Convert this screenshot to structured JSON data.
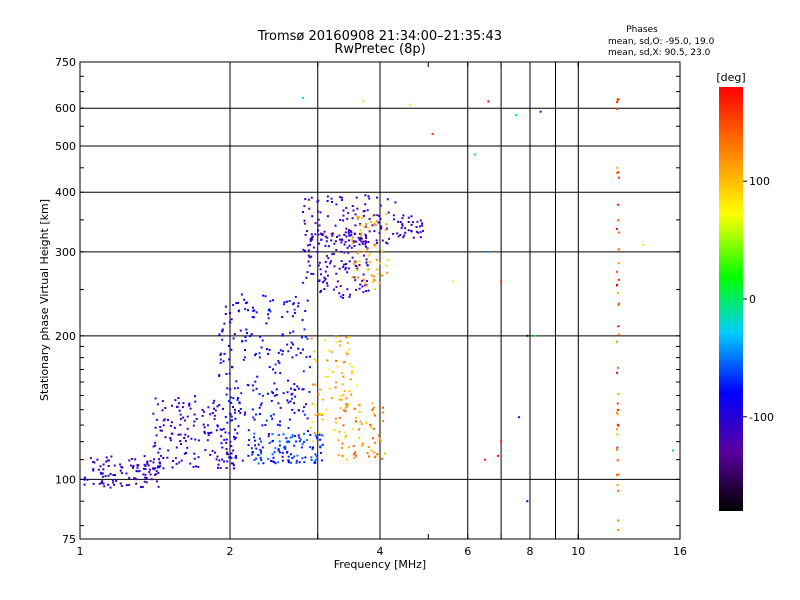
{
  "chart_data": {
    "type": "scatter",
    "title": "Tromsø 20160908 21:34:00–21:35:43",
    "subtitle": "RwPretec (8p)",
    "xlabel": "Frequency [MHz]",
    "ylabel": "Stationary phase Virtual Height [km]",
    "x_scale": "log",
    "y_scale": "log",
    "xlim": [
      1,
      16
    ],
    "ylim": [
      75,
      750
    ],
    "x_ticks": [
      1,
      2,
      4,
      6,
      8,
      10,
      16
    ],
    "x_tick_labels": [
      "1",
      "2",
      "4",
      "6",
      "8",
      "10",
      "16"
    ],
    "y_ticks": [
      75,
      100,
      200,
      300,
      400,
      500,
      600,
      750
    ],
    "y_tick_labels": [
      "75",
      "100",
      "200",
      "300",
      "400",
      "500",
      "600",
      "750"
    ],
    "extra_grid_x": [
      3,
      7,
      9
    ],
    "colorbar": {
      "label": "[deg]",
      "range": [
        -180,
        180
      ],
      "ticks": [
        100,
        0,
        -100
      ],
      "tick_labels": [
        "100",
        "0",
        "-100"
      ]
    },
    "legend": {
      "header": "Phases",
      "lines": [
        "mean, sd,O: -95.0, 19.0",
        "mean, sd,X:  90.5, 23.0"
      ]
    },
    "colors": {
      "low": "#000000",
      "mid": "#00ff00",
      "high": "#ff0000"
    },
    "point_clusters": [
      {
        "freq": [
          1.02,
          1.45
        ],
        "height": [
          96,
          112
        ],
        "phase": [
          -125,
          -90
        ],
        "count": 110
      },
      {
        "freq": [
          1.4,
          2.1
        ],
        "height": [
          105,
          150
        ],
        "phase": [
          -125,
          -85
        ],
        "count": 170
      },
      {
        "freq": [
          1.9,
          2.9
        ],
        "height": [
          108,
          245
        ],
        "phase": [
          -110,
          -65
        ],
        "count": 260
      },
      {
        "freq": [
          2.2,
          3.1
        ],
        "height": [
          108,
          125
        ],
        "phase": [
          -85,
          -45
        ],
        "count": 90
      },
      {
        "freq": [
          2.9,
          3.6
        ],
        "height": [
          120,
          200
        ],
        "phase": [
          70,
          130
        ],
        "count": 80
      },
      {
        "freq": [
          3.3,
          4.1
        ],
        "height": [
          110,
          145
        ],
        "phase": [
          90,
          150
        ],
        "count": 60
      },
      {
        "freq": [
          2.8,
          3.8
        ],
        "height": [
          240,
          330
        ],
        "phase": [
          -125,
          -95
        ],
        "count": 150
      },
      {
        "freq": [
          2.8,
          4.4
        ],
        "height": [
          310,
          395
        ],
        "phase": [
          -130,
          -95
        ],
        "count": 110
      },
      {
        "freq": [
          3.5,
          4.2
        ],
        "height": [
          250,
          360
        ],
        "phase": [
          80,
          130
        ],
        "count": 60
      },
      {
        "freq": [
          4.4,
          4.9
        ],
        "height": [
          320,
          360
        ],
        "phase": [
          -125,
          -100
        ],
        "count": 30
      }
    ],
    "sparse_points": [
      {
        "freq": 6.5,
        "height": 110,
        "phase": 170
      },
      {
        "freq": 6.9,
        "height": 112,
        "phase": 175
      },
      {
        "freq": 7.0,
        "height": 120,
        "phase": 165
      },
      {
        "freq": 7.9,
        "height": 90,
        "phase": -90
      },
      {
        "freq": 7.6,
        "height": 135,
        "phase": -120
      },
      {
        "freq": 7.5,
        "height": 580,
        "phase": -30
      },
      {
        "freq": 8.4,
        "height": 590,
        "phase": -120
      },
      {
        "freq": 6.6,
        "height": 620,
        "phase": 175
      },
      {
        "freq": 5.1,
        "height": 530,
        "phase": 160
      },
      {
        "freq": 6.6,
        "height": 300,
        "phase": -40
      },
      {
        "freq": 7.0,
        "height": 260,
        "phase": 160
      },
      {
        "freq": 7.9,
        "height": 200,
        "phase": -160
      },
      {
        "freq": 8.2,
        "height": 200,
        "phase": 20
      },
      {
        "freq": 15.5,
        "height": 115,
        "phase": -20
      },
      {
        "freq": 13.5,
        "height": 310,
        "phase": 60
      },
      {
        "freq": 4.6,
        "height": 610,
        "phase": 80
      },
      {
        "freq": 3.7,
        "height": 620,
        "phase": 60
      },
      {
        "freq": 2.8,
        "height": 630,
        "phase": -30
      },
      {
        "freq": 6.2,
        "height": 480,
        "phase": 10
      },
      {
        "freq": 5.6,
        "height": 260,
        "phase": 80
      }
    ],
    "vertical_trace": {
      "freq": 12.0,
      "height": [
        78,
        630
      ],
      "phase": [
        100,
        180
      ],
      "count": 45
    }
  }
}
